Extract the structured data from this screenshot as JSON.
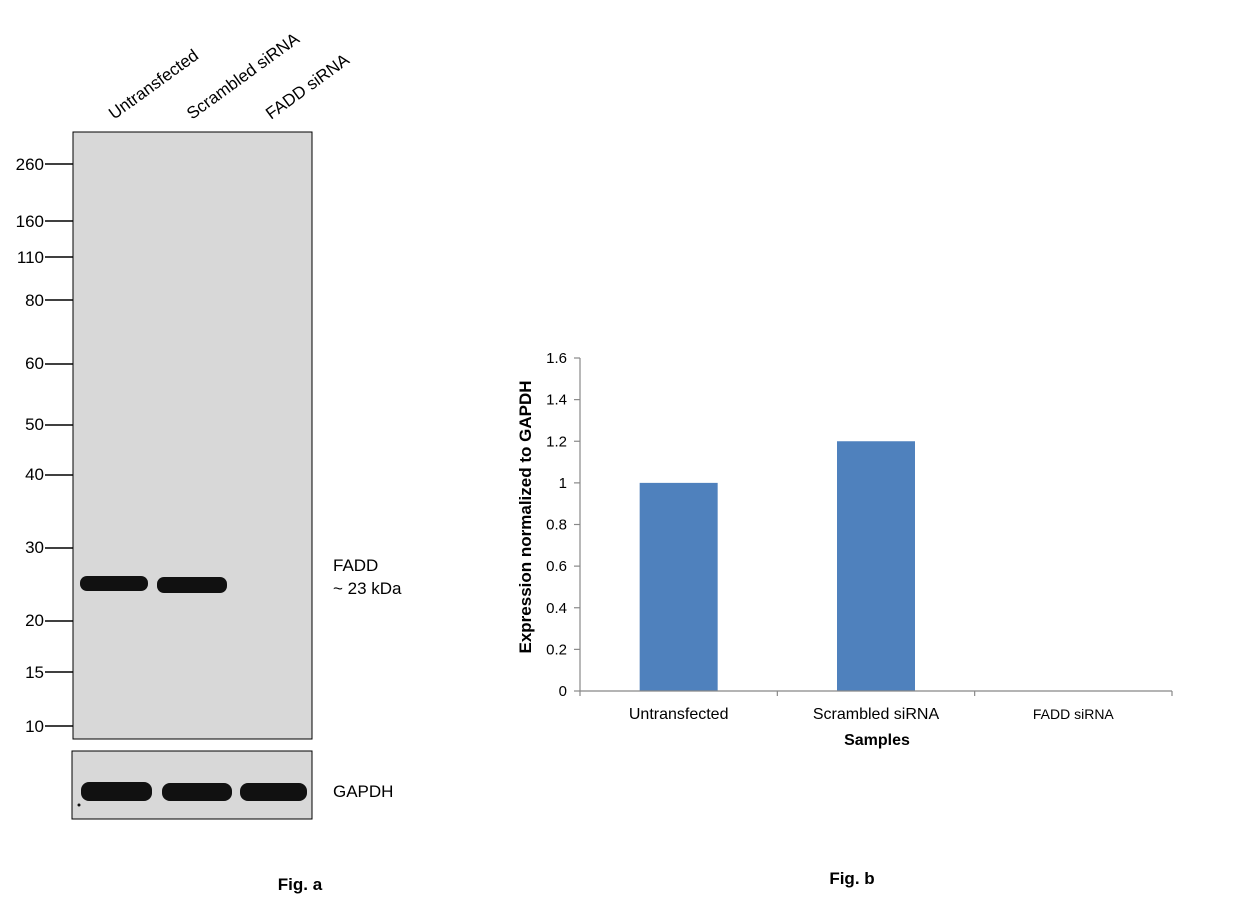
{
  "figure_a": {
    "caption": "Fig. a",
    "lane_labels": [
      "Untransfected",
      "Scrambled siRNA",
      "FADD siRNA"
    ],
    "mw_markers": [
      "260",
      "160",
      "110",
      "80",
      "60",
      "50",
      "40",
      "30",
      "20",
      "15",
      "10"
    ],
    "band_label_line1": "FADD",
    "band_label_line2": "~ 23 kDa",
    "loading_control_label": "GAPDH",
    "colors": {
      "blot_background": "#d8d8d8",
      "band": "#111111"
    }
  },
  "figure_b": {
    "caption": "Fig. b"
  },
  "chart_data": {
    "type": "bar",
    "categories": [
      "Untransfected",
      "Scrambled siRNA",
      "FADD siRNA"
    ],
    "values": [
      1.0,
      1.2,
      0.0
    ],
    "title": "",
    "xlabel": "Samples",
    "ylabel": "Expression normalized to GAPDH",
    "ylim": [
      0,
      1.6
    ],
    "yticks": [
      "0",
      "0.2",
      "0.4",
      "0.6",
      "0.8",
      "1",
      "1.2",
      "1.4",
      "1.6"
    ],
    "grid": false,
    "legend": "none",
    "bar_color": "#4f81bd"
  }
}
